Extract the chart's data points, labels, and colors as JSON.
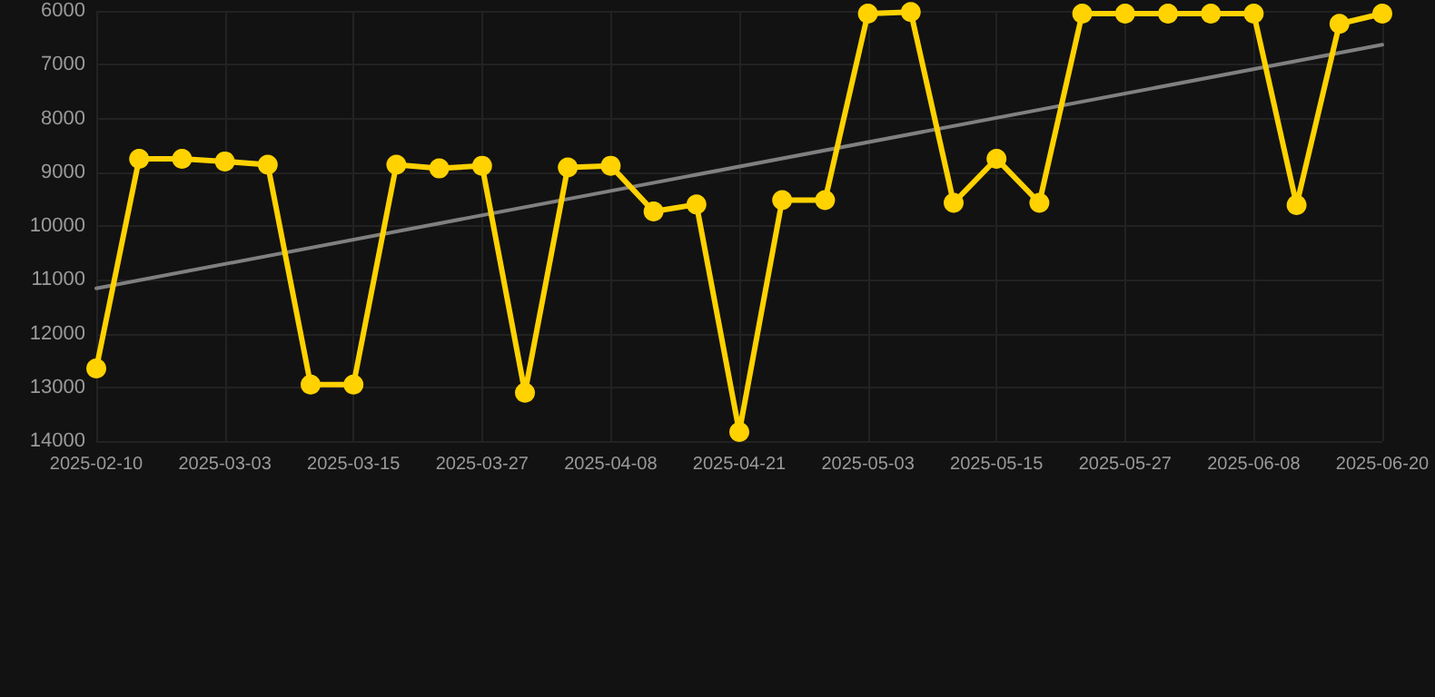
{
  "chart_data": {
    "type": "line",
    "categories": [
      "2025-02-10",
      null,
      null,
      "2025-03-03",
      null,
      null,
      "2025-03-15",
      null,
      null,
      "2025-03-27",
      null,
      null,
      "2025-04-08",
      null,
      null,
      "2025-04-21",
      null,
      null,
      "2025-05-03",
      null,
      null,
      "2025-05-15",
      null,
      null,
      "2025-05-27",
      null,
      null,
      "2025-06-08",
      null,
      null,
      "2025-06-20"
    ],
    "series": [
      {
        "color": "#ffd200",
        "marker": "circle",
        "values": [
          12650,
          8750,
          8750,
          8800,
          8860,
          12950,
          12950,
          8860,
          8930,
          8880,
          13100,
          8910,
          8880,
          9730,
          9600,
          13830,
          9520,
          9520,
          6050,
          6020,
          9570,
          8750,
          9570,
          6050,
          6050,
          6050,
          6050,
          6050,
          9610,
          6240,
          6050
        ]
      },
      {
        "color": "#808080",
        "marker": "none",
        "values": [
          11160,
          null,
          null,
          null,
          null,
          null,
          null,
          null,
          null,
          null,
          null,
          null,
          null,
          null,
          null,
          null,
          null,
          null,
          null,
          null,
          null,
          null,
          null,
          null,
          null,
          null,
          null,
          null,
          null,
          null,
          6630
        ]
      }
    ],
    "ylim": [
      14000,
      6000
    ],
    "yticks": [
      6000,
      7000,
      8000,
      9000,
      10000,
      11000,
      12000,
      13000,
      14000
    ],
    "grid": true
  }
}
